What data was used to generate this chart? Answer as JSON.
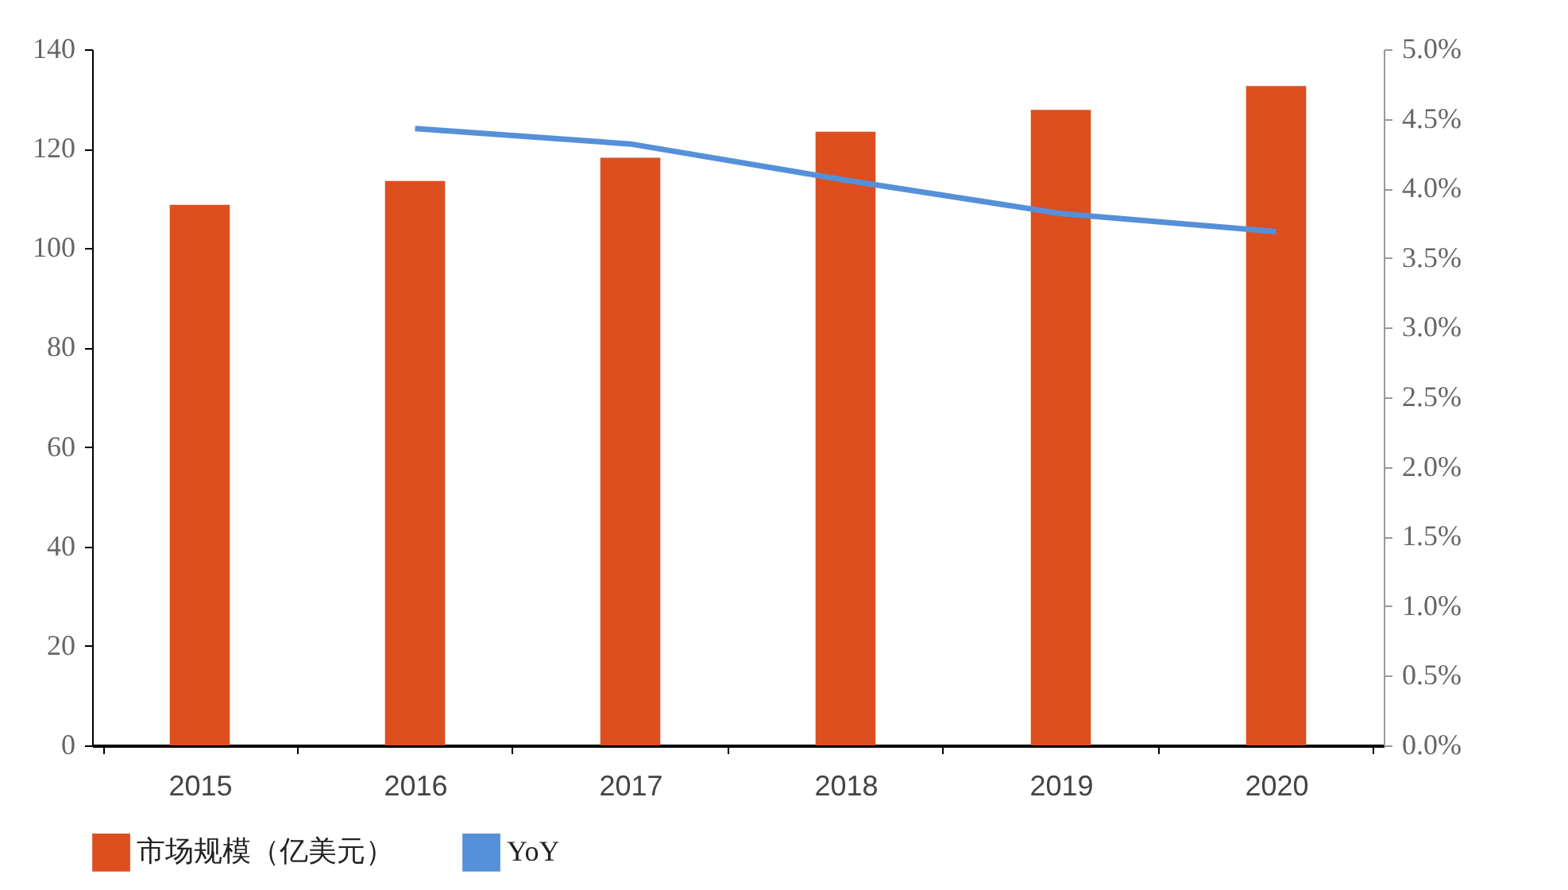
{
  "chart_data": {
    "type": "bar",
    "categories": [
      "2015",
      "2016",
      "2017",
      "2018",
      "2019",
      "2020"
    ],
    "series": [
      {
        "name": "市场规模（亿美元）",
        "color": "#dd4f1f",
        "values": [
          108.7,
          113.5,
          118.2,
          123.4,
          127.8,
          132.6
        ]
      },
      {
        "name": "YoY",
        "type": "line",
        "axis": "y2",
        "color": "#5590d9",
        "values": [
          null,
          4.43,
          4.32,
          4.06,
          3.82,
          3.69
        ]
      }
    ],
    "ylim": [
      0,
      140
    ],
    "yticks": [
      0,
      20,
      40,
      60,
      80,
      100,
      120,
      140
    ],
    "y2lim": [
      0,
      5
    ],
    "y2ticks": [
      {
        "value": 0,
        "label": "0.0%"
      },
      {
        "value": 0.5,
        "label": "0.5%"
      },
      {
        "value": 1,
        "label": "1.0%"
      },
      {
        "value": 1.5,
        "label": "1.5%"
      },
      {
        "value": 2,
        "label": "2.0%"
      },
      {
        "value": 2.5,
        "label": "2.5%"
      },
      {
        "value": 3,
        "label": "3.0%"
      },
      {
        "value": 3.5,
        "label": "3.5%"
      },
      {
        "value": 4,
        "label": "4.0%"
      },
      {
        "value": 4.5,
        "label": "4.5%"
      },
      {
        "value": 5,
        "label": "5.0%"
      }
    ],
    "grid": false,
    "legend": "bottom",
    "marker": "none",
    "line_style": "solid"
  }
}
